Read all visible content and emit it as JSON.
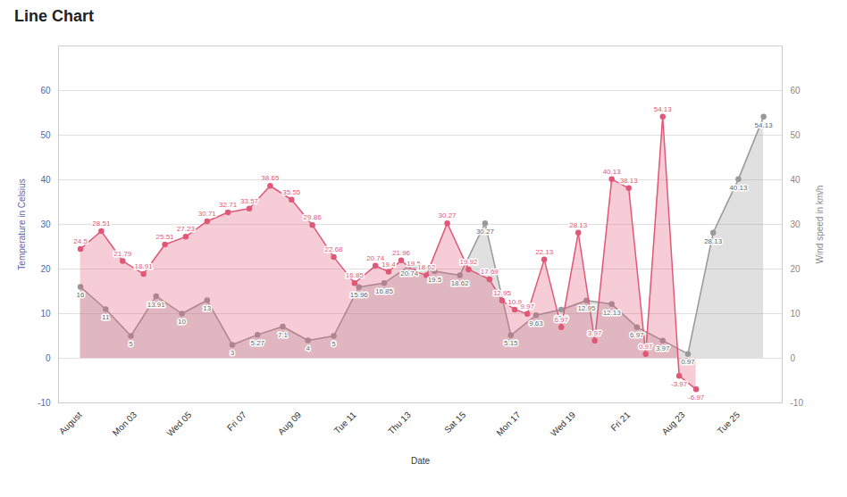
{
  "chart_data": {
    "type": "area",
    "title": "Line Chart",
    "x_label": "Date",
    "y_label": "Temperature in Celsius",
    "y2_label": "Wind speed in km/h",
    "xlim": [
      -0.4,
      12.8
    ],
    "xticks": [
      {
        "value": 0,
        "label": "August"
      },
      {
        "value": 1,
        "label": "Mon 03"
      },
      {
        "value": 2,
        "label": "Wed 05"
      },
      {
        "value": 3,
        "label": "Fri 07"
      },
      {
        "value": 4,
        "label": "Aug 09"
      },
      {
        "value": 5,
        "label": "Tue 11"
      },
      {
        "value": 6,
        "label": "Thu 13"
      },
      {
        "value": 7,
        "label": "Sat 15"
      },
      {
        "value": 8,
        "label": "Mon 17"
      },
      {
        "value": 9,
        "label": "Wed 19"
      },
      {
        "value": 10,
        "label": "Fri 21"
      },
      {
        "value": 11,
        "label": "Aug 23"
      },
      {
        "value": 12,
        "label": "Tue 25"
      }
    ],
    "ylim": [
      -10,
      70
    ],
    "yticks": [
      -10,
      0,
      10,
      20,
      30,
      40,
      50,
      60
    ],
    "y2lim": [
      -10,
      70
    ],
    "y2ticks": [
      -10,
      0,
      10,
      20,
      30,
      40,
      50,
      60
    ],
    "grid": "y",
    "data_labels": true,
    "marker": "circle",
    "series": [
      {
        "axis": "y2",
        "color": "#999999",
        "x": [
          0,
          0.46,
          0.92,
          1.38,
          1.85,
          2.31,
          2.77,
          3.23,
          3.69,
          4.15,
          4.62,
          5.08,
          5.54,
          6.0,
          6.46,
          6.92,
          7.38,
          7.85,
          8.31,
          8.77,
          9.23,
          9.69,
          10.15,
          10.62,
          11.08,
          11.54,
          12.0,
          12.46
        ],
        "values": [
          16,
          11,
          5,
          13.91,
          10,
          13,
          3,
          5.27,
          7.1,
          4,
          5,
          15.96,
          16.85,
          20.74,
          19.5,
          18.62,
          30.27,
          5.15,
          9.63,
          10.9,
          12.95,
          12.13,
          6.97,
          3.97,
          0.97,
          28.13,
          40.13,
          54.13
        ]
      },
      {
        "color": "#e05878",
        "x": [
          0,
          0.38,
          0.77,
          1.15,
          1.54,
          1.92,
          2.31,
          2.69,
          3.08,
          3.46,
          3.85,
          4.23,
          4.62,
          5.0,
          5.38,
          5.62,
          5.85,
          6.08,
          6.31,
          6.69,
          7.08,
          7.46,
          7.69,
          7.92,
          8.15,
          8.46,
          8.77,
          9.08,
          9.38,
          9.69,
          10.0,
          10.31,
          10.62,
          10.92,
          11.23
        ],
        "values": [
          24.5,
          28.51,
          21.79,
          18.91,
          25.51,
          27.23,
          30.71,
          32.71,
          33.57,
          38.65,
          35.55,
          29.86,
          22.68,
          16.85,
          20.74,
          19.4,
          21.96,
          19.5,
          18.62,
          30.27,
          19.92,
          17.69,
          12.95,
          10.9,
          9.97,
          22.13,
          6.97,
          28.13,
          3.97,
          40.13,
          38.13,
          0.97,
          54.13,
          -3.97,
          -6.97
        ]
      }
    ]
  }
}
